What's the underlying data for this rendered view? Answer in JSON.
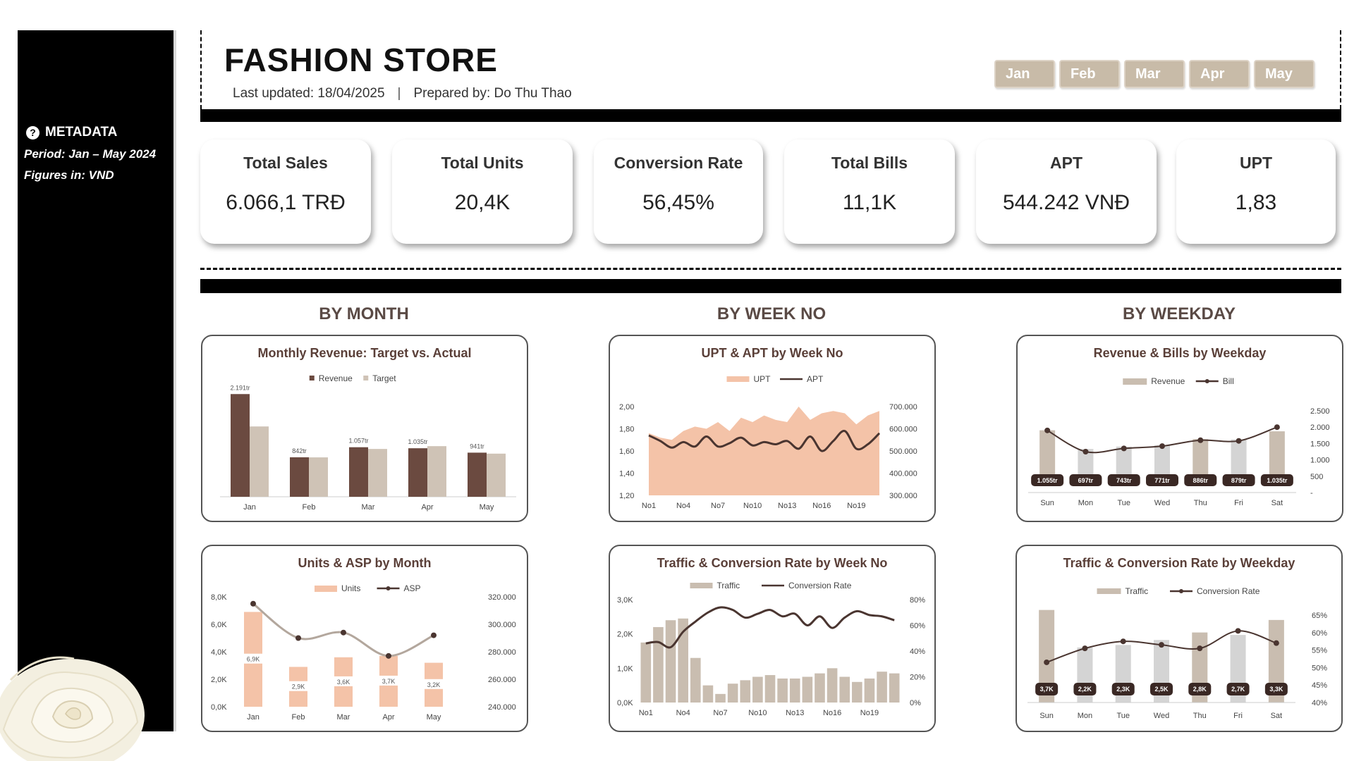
{
  "sidebar": {
    "metadata_title": "METADATA",
    "period": "Period: Jan – May 2024",
    "figures": "Figures in: VND"
  },
  "header": {
    "title": "FASHION STORE",
    "last_updated": "Last updated: 18/04/2025",
    "separator": "|",
    "prepared_by": "Prepared by: Do Thu Thao",
    "months": [
      "Jan",
      "Feb",
      "Mar",
      "Apr",
      "May"
    ]
  },
  "kpis": [
    {
      "label": "Total Sales",
      "value": "6.066,1 TRĐ"
    },
    {
      "label": "Total Units",
      "value": "20,4K"
    },
    {
      "label": "Conversion Rate",
      "value": "56,45%"
    },
    {
      "label": "Total Bills",
      "value": "11,1K"
    },
    {
      "label": "APT",
      "value": "544.242 VNĐ"
    },
    {
      "label": "UPT",
      "value": "1,83"
    }
  ],
  "sections": {
    "month": "BY MONTH",
    "week": "BY WEEK NO",
    "weekday": "BY WEEKDAY"
  },
  "colors": {
    "dark_brown": "#6b4a40",
    "beige": "#cfc3b6",
    "peach": "#f4c3a8",
    "taupe": "#c9bdb0",
    "light_grey": "#d4d4d4",
    "line": "#4a3530"
  },
  "chart_data": [
    {
      "id": "monthly_revenue",
      "type": "bar",
      "title": "Monthly Revenue: Target vs. Actual",
      "categories": [
        "Jan",
        "Feb",
        "Mar",
        "Apr",
        "May"
      ],
      "series": [
        {
          "name": "Revenue",
          "values": [
            2191,
            842,
            1057,
            1035,
            941
          ]
        },
        {
          "name": "Target",
          "values": [
            1500,
            840,
            1020,
            1080,
            920
          ]
        }
      ],
      "data_labels": [
        "2.191tr",
        "842tr",
        "1.057tr",
        "1.035tr",
        "941tr"
      ],
      "ylim": [
        0,
        2300
      ]
    },
    {
      "id": "upt_apt_week",
      "type": "area",
      "title": "UPT & APT by Week No",
      "x": [
        "No1",
        "No2",
        "No3",
        "No4",
        "No5",
        "No6",
        "No7",
        "No8",
        "No9",
        "No10",
        "No11",
        "No12",
        "No13",
        "No14",
        "No15",
        "No16",
        "No17",
        "No18",
        "No19",
        "No20",
        "No21"
      ],
      "x_tick_labels": [
        "No1",
        "No4",
        "No7",
        "No10",
        "No13",
        "No16",
        "No19"
      ],
      "series": [
        {
          "name": "UPT",
          "values": [
            1.76,
            1.72,
            1.7,
            1.78,
            1.82,
            1.8,
            1.86,
            1.78,
            1.9,
            1.86,
            1.92,
            1.88,
            1.86,
            2.0,
            1.88,
            1.94,
            1.96,
            1.94,
            1.84,
            1.92,
            1.96
          ]
        },
        {
          "name": "APT",
          "values": [
            570000,
            545000,
            515000,
            540000,
            520000,
            565000,
            520000,
            535000,
            560000,
            525000,
            540000,
            530000,
            545000,
            510000,
            565000,
            500000,
            545000,
            590000,
            510000,
            530000,
            580000
          ]
        }
      ],
      "y_left_ticks": [
        "2,00",
        "1,80",
        "1,60",
        "1,40",
        "1,20"
      ],
      "y_left_lim": [
        1.2,
        2.0
      ],
      "y_right_ticks": [
        "700.000",
        "600.000",
        "500.000",
        "400.000",
        "300.000"
      ],
      "y_right_lim": [
        300000,
        700000
      ]
    },
    {
      "id": "revenue_bills_weekday",
      "type": "bar",
      "title": "Revenue & Bills by Weekday",
      "categories": [
        "Sun",
        "Mon",
        "Tue",
        "Wed",
        "Thu",
        "Fri",
        "Sat"
      ],
      "series": [
        {
          "name": "Revenue",
          "values": [
            1055,
            697,
            743,
            771,
            886,
            879,
            1035
          ]
        },
        {
          "name": "Bill",
          "values": [
            1900,
            1250,
            1350,
            1420,
            1600,
            1580,
            2000
          ]
        }
      ],
      "data_labels": [
        "1.055tr",
        "697tr",
        "743tr",
        "771tr",
        "886tr",
        "879tr",
        "1.035tr"
      ],
      "y_right_ticks": [
        "2.500",
        "2.000",
        "1.500",
        "1.000",
        "500",
        "-"
      ],
      "y_right_lim": [
        0,
        2500
      ],
      "ylim": [
        0,
        1400
      ]
    },
    {
      "id": "units_asp_month",
      "type": "bar",
      "title": "Units & ASP by Month",
      "categories": [
        "Jan",
        "Feb",
        "Mar",
        "Apr",
        "May"
      ],
      "series": [
        {
          "name": "Units",
          "values": [
            6900,
            2900,
            3600,
            3700,
            3200
          ]
        },
        {
          "name": "ASP",
          "values": [
            315000,
            290000,
            294000,
            277000,
            292000
          ]
        }
      ],
      "data_labels": [
        "6,9K",
        "2,9K",
        "3,6K",
        "3,7K",
        "3,2K"
      ],
      "y_left_ticks": [
        "8,0K",
        "6,0K",
        "4,0K",
        "2,0K",
        "0,0K"
      ],
      "y_left_lim": [
        0,
        8000
      ],
      "y_right_ticks": [
        "320.000",
        "300.000",
        "280.000",
        "260.000",
        "240.000"
      ],
      "y_right_lim": [
        240000,
        320000
      ]
    },
    {
      "id": "traffic_conv_week",
      "type": "bar",
      "title": "Traffic & Conversion Rate by Week No",
      "x": [
        "No1",
        "No2",
        "No3",
        "No4",
        "No5",
        "No6",
        "No7",
        "No8",
        "No9",
        "No10",
        "No11",
        "No12",
        "No13",
        "No14",
        "No15",
        "No16",
        "No17",
        "No18",
        "No19",
        "No20",
        "No21"
      ],
      "x_tick_labels": [
        "No1",
        "No4",
        "No7",
        "No10",
        "No13",
        "No16",
        "No19"
      ],
      "series": [
        {
          "name": "Traffic",
          "values": [
            1750,
            2200,
            2400,
            2450,
            1300,
            500,
            250,
            550,
            650,
            750,
            800,
            700,
            700,
            750,
            850,
            1000,
            750,
            600,
            700,
            900,
            850
          ]
        },
        {
          "name": "Conversion Rate",
          "values": [
            46,
            47,
            43,
            55,
            63,
            70,
            74,
            72,
            66,
            69,
            72,
            67,
            69,
            60,
            67,
            58,
            66,
            71,
            68,
            67,
            64
          ]
        }
      ],
      "y_left_ticks": [
        "3,0K",
        "2,0K",
        "1,0K",
        "0,0K"
      ],
      "y_left_lim": [
        0,
        3000
      ],
      "y_right_ticks": [
        "80%",
        "60%",
        "40%",
        "20%",
        "0%"
      ],
      "y_right_lim": [
        0,
        80
      ]
    },
    {
      "id": "traffic_conv_weekday",
      "type": "bar",
      "title": "Traffic & Conversion Rate by Weekday",
      "categories": [
        "Sun",
        "Mon",
        "Tue",
        "Wed",
        "Thu",
        "Fri",
        "Sat"
      ],
      "series": [
        {
          "name": "Traffic",
          "values": [
            3700,
            2200,
            2300,
            2500,
            2800,
            2700,
            3300
          ]
        },
        {
          "name": "Conversion Rate",
          "values": [
            51.5,
            55.5,
            57.5,
            56.5,
            55.5,
            60.5,
            57.0
          ]
        }
      ],
      "data_labels": [
        "3,7K",
        "2,2K",
        "2,3K",
        "2,5K",
        "2,8K",
        "2,7K",
        "3,3K"
      ],
      "y_right_ticks": [
        "65%",
        "60%",
        "55%",
        "50%",
        "45%",
        "40%"
      ],
      "y_right_lim": [
        40,
        65
      ]
    }
  ]
}
